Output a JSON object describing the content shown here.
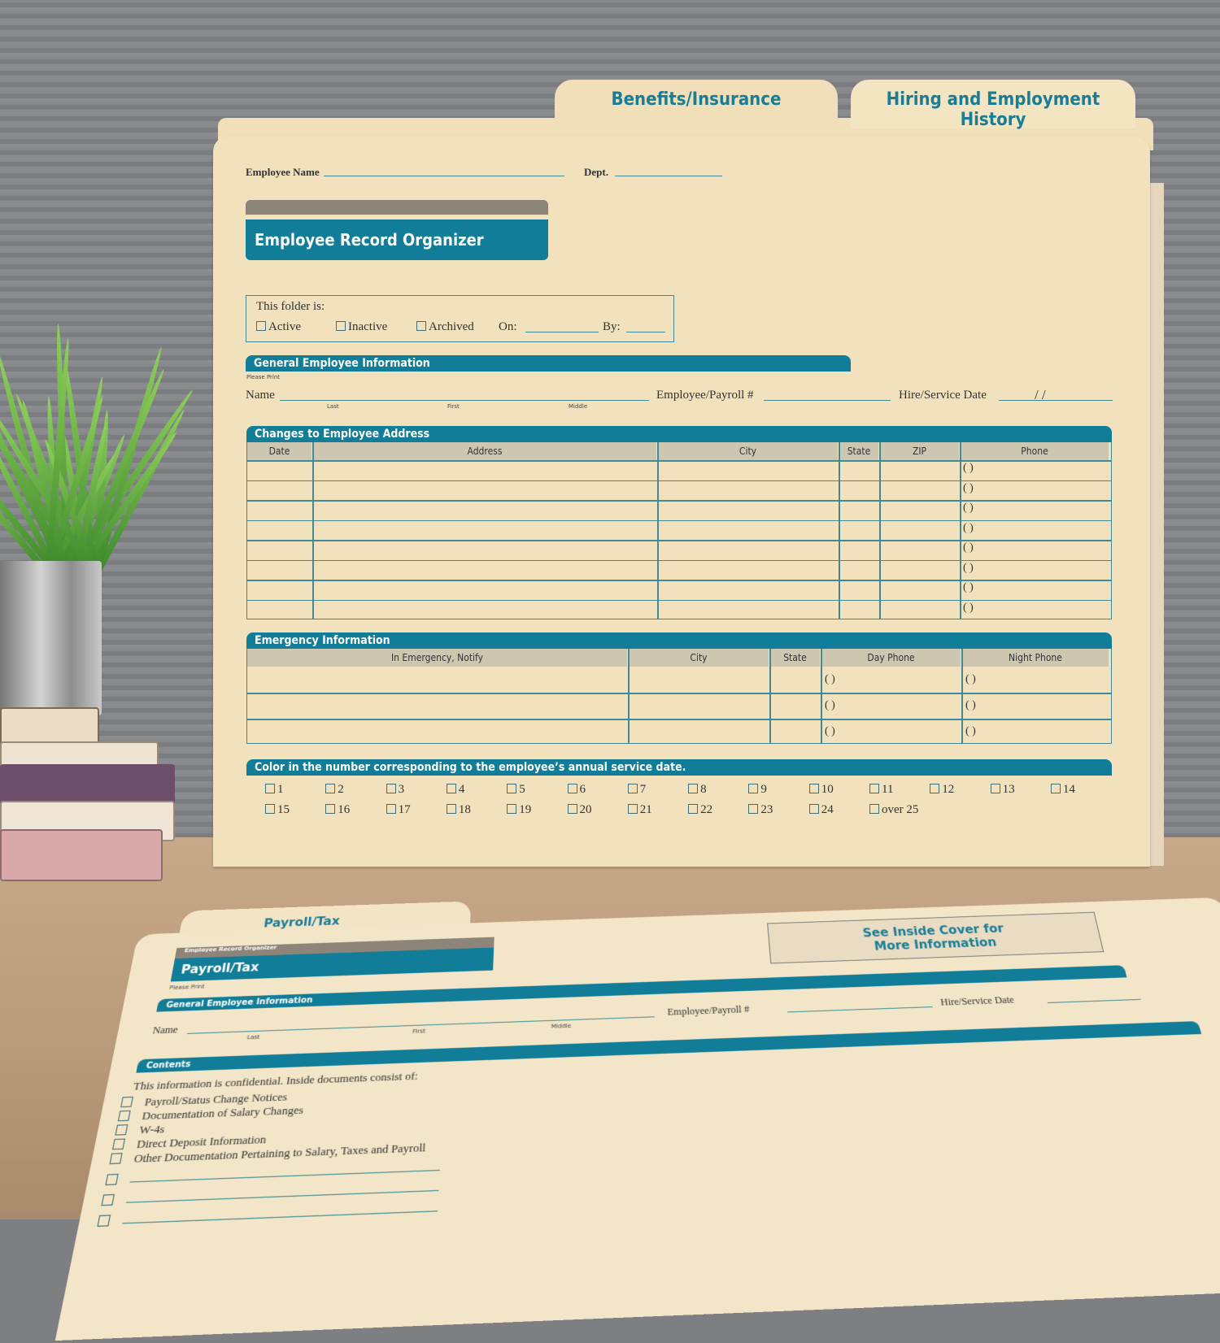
{
  "colors": {
    "brand_teal": "#117d98",
    "folder_manila": "#f1e1bd",
    "header_gray": "#cdc6b1"
  },
  "tabs": [
    "Benefits/Insurance",
    "Hiring and Employment History"
  ],
  "front": {
    "employee_name_label": "Employee Name",
    "dept_label": "Dept.",
    "title": "Employee Record Organizer",
    "status": {
      "heading": "This folder is:",
      "options": [
        "Active",
        "Inactive",
        "Archived"
      ],
      "on_label": "On:",
      "by_label": "By:"
    },
    "general": {
      "heading": "General Employee Information",
      "please_print": "Please Print",
      "name_label": "Name",
      "sub_labels": [
        "Last",
        "First",
        "Middle"
      ],
      "payroll_label": "Employee/Payroll #",
      "hire_label": "Hire/Service Date",
      "date_slashes": "/      /"
    },
    "address": {
      "heading": "Changes to Employee Address",
      "columns": [
        "Date",
        "Address",
        "City",
        "State",
        "ZIP",
        "Phone"
      ],
      "phone_placeholder": "(          )"
    },
    "emergency": {
      "heading": "Emergency Information",
      "columns": [
        "In Emergency, Notify",
        "City",
        "State",
        "Day Phone",
        "Night Phone"
      ],
      "phone_placeholder": "(          )"
    },
    "service": {
      "heading": "Color in the number corresponding to the employee’s annual service date.",
      "row1": [
        "1",
        "2",
        "3",
        "4",
        "5",
        "6",
        "7",
        "8",
        "9",
        "10",
        "11",
        "12",
        "13",
        "14"
      ],
      "row2": [
        "15",
        "16",
        "17",
        "18",
        "19",
        "20",
        "21",
        "22",
        "23",
        "24",
        "over 25"
      ]
    }
  },
  "back": {
    "tab": "Payroll/Tax",
    "subtitle": "Employee Record Organizer",
    "title": "Payroll/Tax",
    "please_print": "Please Print",
    "note": "See Inside Cover for More Information",
    "general_heading": "General Employee Information",
    "name_label": "Name",
    "sub_labels": [
      "Last",
      "First",
      "Middle"
    ],
    "payroll_label": "Employee/Payroll #",
    "hire_label": "Hire/Service Date",
    "contents_heading": "Contents",
    "intro": "This information is confidential. Inside documents consist of:",
    "items": [
      "Payroll/Status Change Notices",
      "Documentation of Salary Changes",
      "W-4s",
      "Direct Deposit Information",
      "Other Documentation Pertaining to Salary, Taxes and Payroll"
    ]
  }
}
